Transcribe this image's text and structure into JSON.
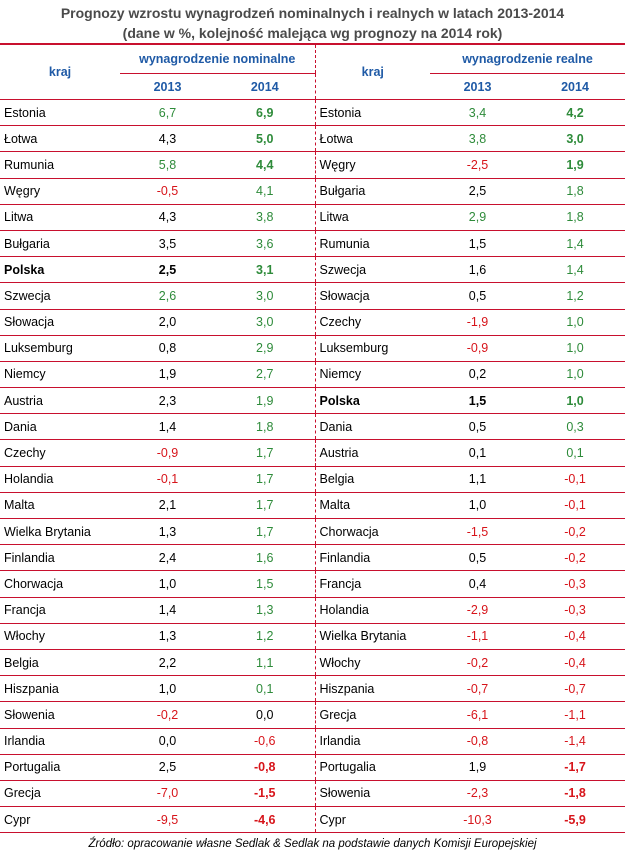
{
  "title_line1": "Prognozy wzrostu wynagrodzeń nominalnych i realnych w latach 2013-2014",
  "title_line2": "(dane w %, kolejność malejąca wg prognozy na 2014 rok)",
  "headers": {
    "kraj": "kraj",
    "nominal": "wynagrodzenie nominalne",
    "real": "wynagrodzenie realne",
    "y2013": "2013",
    "y2014": "2014"
  },
  "nominal_rows": [
    {
      "country": "Estonia",
      "v2013": "6,7",
      "v2014": "6,9"
    },
    {
      "country": "Łotwa",
      "v2013": "4,3",
      "v2014": "5,0"
    },
    {
      "country": "Rumunia",
      "v2013": "5,8",
      "v2014": "4,4"
    },
    {
      "country": "Węgry",
      "v2013": "-0,5",
      "v2014": "4,1"
    },
    {
      "country": "Litwa",
      "v2013": "4,3",
      "v2014": "3,8"
    },
    {
      "country": "Bułgaria",
      "v2013": "3,5",
      "v2014": "3,6"
    },
    {
      "country": "Polska",
      "v2013": "2,5",
      "v2014": "3,1",
      "highlight": true
    },
    {
      "country": "Szwecja",
      "v2013": "2,6",
      "v2014": "3,0"
    },
    {
      "country": "Słowacja",
      "v2013": "2,0",
      "v2014": "3,0"
    },
    {
      "country": "Luksemburg",
      "v2013": "0,8",
      "v2014": "2,9"
    },
    {
      "country": "Niemcy",
      "v2013": "1,9",
      "v2014": "2,7"
    },
    {
      "country": "Austria",
      "v2013": "2,3",
      "v2014": "1,9"
    },
    {
      "country": "Dania",
      "v2013": "1,4",
      "v2014": "1,8"
    },
    {
      "country": "Czechy",
      "v2013": "-0,9",
      "v2014": "1,7"
    },
    {
      "country": "Holandia",
      "v2013": "-0,1",
      "v2014": "1,7"
    },
    {
      "country": "Malta",
      "v2013": "2,1",
      "v2014": "1,7"
    },
    {
      "country": "Wielka Brytania",
      "v2013": "1,3",
      "v2014": "1,7"
    },
    {
      "country": "Finlandia",
      "v2013": "2,4",
      "v2014": "1,6"
    },
    {
      "country": "Chorwacja",
      "v2013": "1,0",
      "v2014": "1,5"
    },
    {
      "country": "Francja",
      "v2013": "1,4",
      "v2014": "1,3"
    },
    {
      "country": "Włochy",
      "v2013": "1,3",
      "v2014": "1,2"
    },
    {
      "country": "Belgia",
      "v2013": "2,2",
      "v2014": "1,1"
    },
    {
      "country": "Hiszpania",
      "v2013": "1,0",
      "v2014": "0,1"
    },
    {
      "country": "Słowenia",
      "v2013": "-0,2",
      "v2014": "0,0"
    },
    {
      "country": "Irlandia",
      "v2013": "0,0",
      "v2014": "-0,6"
    },
    {
      "country": "Portugalia",
      "v2013": "2,5",
      "v2014": "-0,8"
    },
    {
      "country": "Grecja",
      "v2013": "-7,0",
      "v2014": "-1,5"
    },
    {
      "country": "Cypr",
      "v2013": "-9,5",
      "v2014": "-4,6"
    }
  ],
  "real_rows": [
    {
      "country": "Estonia",
      "v2013": "3,4",
      "v2014": "4,2"
    },
    {
      "country": "Łotwa",
      "v2013": "3,8",
      "v2014": "3,0"
    },
    {
      "country": "Węgry",
      "v2013": "-2,5",
      "v2014": "1,9"
    },
    {
      "country": "Bułgaria",
      "v2013": "2,5",
      "v2014": "1,8"
    },
    {
      "country": "Litwa",
      "v2013": "2,9",
      "v2014": "1,8"
    },
    {
      "country": "Rumunia",
      "v2013": "1,5",
      "v2014": "1,4"
    },
    {
      "country": "Szwecja",
      "v2013": "1,6",
      "v2014": "1,4"
    },
    {
      "country": "Słowacja",
      "v2013": "0,5",
      "v2014": "1,2"
    },
    {
      "country": "Czechy",
      "v2013": "-1,9",
      "v2014": "1,0"
    },
    {
      "country": "Luksemburg",
      "v2013": "-0,9",
      "v2014": "1,0"
    },
    {
      "country": "Niemcy",
      "v2013": "0,2",
      "v2014": "1,0"
    },
    {
      "country": "Polska",
      "v2013": "1,5",
      "v2014": "1,0",
      "highlight": true
    },
    {
      "country": "Dania",
      "v2013": "0,5",
      "v2014": "0,3"
    },
    {
      "country": "Austria",
      "v2013": "0,1",
      "v2014": "0,1"
    },
    {
      "country": "Belgia",
      "v2013": "1,1",
      "v2014": "-0,1"
    },
    {
      "country": "Malta",
      "v2013": "1,0",
      "v2014": "-0,1"
    },
    {
      "country": "Chorwacja",
      "v2013": "-1,5",
      "v2014": "-0,2"
    },
    {
      "country": "Finlandia",
      "v2013": "0,5",
      "v2014": "-0,2"
    },
    {
      "country": "Francja",
      "v2013": "0,4",
      "v2014": "-0,3"
    },
    {
      "country": "Holandia",
      "v2013": "-2,9",
      "v2014": "-0,3"
    },
    {
      "country": "Wielka Brytania",
      "v2013": "-1,1",
      "v2014": "-0,4"
    },
    {
      "country": "Włochy",
      "v2013": "-0,2",
      "v2014": "-0,4"
    },
    {
      "country": "Hiszpania",
      "v2013": "-0,7",
      "v2014": "-0,7"
    },
    {
      "country": "Grecja",
      "v2013": "-6,1",
      "v2014": "-1,1"
    },
    {
      "country": "Irlandia",
      "v2013": "-0,8",
      "v2014": "-1,4"
    },
    {
      "country": "Portugalia",
      "v2013": "1,9",
      "v2014": "-1,7"
    },
    {
      "country": "Słowenia",
      "v2013": "-2,3",
      "v2014": "-1,8"
    },
    {
      "country": "Cypr",
      "v2013": "-10,3",
      "v2014": "-5,9"
    }
  ],
  "colors": {
    "positive": "#2e8b3a",
    "negative": "#d7141a",
    "header": "#1f5aa6",
    "rule": "#c8102e"
  },
  "source": "Źródło: opracowanie własne Sedlak & Sedlak na podstawie danych Komisji Europejskiej"
}
